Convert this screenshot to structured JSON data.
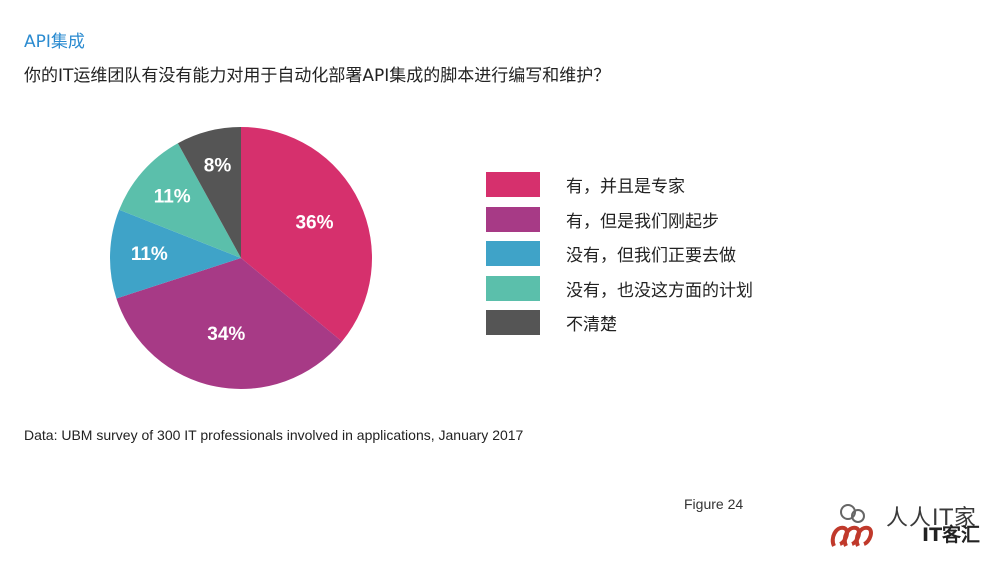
{
  "header": {
    "section_title": "API集成",
    "question": "你的IT运维团队有没有能力对用于自动化部署API集成的脚本进行编写和维护？"
  },
  "chart_data": {
    "type": "pie",
    "title": "",
    "start_angle_deg": 0,
    "direction": "clockwise",
    "slices": [
      {
        "label": "有，并且是专家",
        "value": 36,
        "display": "36%",
        "color": "#d6306d"
      },
      {
        "label": "有，但是我们刚起步",
        "value": 34,
        "display": "34%",
        "color": "#a73a86"
      },
      {
        "label": "没有，但我们正要去做",
        "value": 11,
        "display": "11%",
        "color": "#3fa3c8"
      },
      {
        "label": "没有，也没这方面的计划",
        "value": 11,
        "display": "11%",
        "color": "#5bbfab"
      },
      {
        "label": "不清楚",
        "value": 8,
        "display": "8%",
        "color": "#555555"
      }
    ],
    "legend_placement": "right"
  },
  "footer": {
    "source": "Data: UBM survey of 300 IT professionals involved in applications, January 2017",
    "figure": "Figure 24"
  },
  "watermark": {
    "text": "人人IT家",
    "sub": "IT客汇"
  }
}
